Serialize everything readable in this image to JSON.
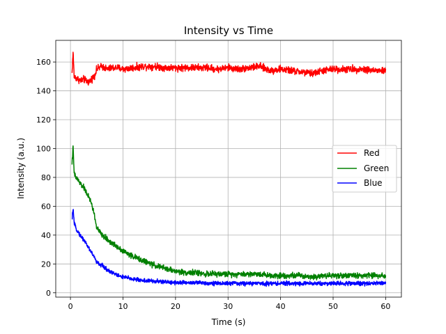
{
  "chart_data": {
    "type": "line",
    "title": "Intensity vs Time",
    "xlabel": "Time (s)",
    "ylabel": "Intensity (a.u.)",
    "xlim": [
      -2.8,
      63
    ],
    "ylim": [
      -3,
      175
    ],
    "xticks": [
      0,
      10,
      20,
      30,
      40,
      50,
      60
    ],
    "yticks": [
      0,
      20,
      40,
      60,
      80,
      100,
      120,
      140,
      160
    ],
    "grid": true,
    "legend_position": "center-right",
    "series": [
      {
        "name": "Red",
        "color": "#ff0000",
        "noise": 1.5,
        "x": [
          0.3,
          0.5,
          0.7,
          1,
          1.5,
          2,
          2.5,
          3,
          3.5,
          4,
          4.5,
          5,
          6,
          7,
          8,
          9,
          10,
          12,
          14,
          16,
          18,
          20,
          22,
          24,
          26,
          28,
          30,
          32,
          34,
          36,
          38,
          40,
          42,
          44,
          46,
          48,
          50,
          52,
          54,
          56,
          58,
          60
        ],
        "y": [
          152,
          167,
          150,
          149,
          148,
          147,
          148,
          147,
          146,
          148,
          150,
          155,
          157,
          155,
          156,
          156,
          155,
          156,
          157,
          157,
          156,
          156,
          156,
          156,
          156,
          155,
          156,
          155,
          156,
          157,
          154,
          155,
          154,
          153,
          152,
          154,
          155,
          155,
          155,
          155,
          154,
          154
        ]
      },
      {
        "name": "Green",
        "color": "#008000",
        "noise": 1.2,
        "x": [
          0.3,
          0.5,
          0.7,
          1,
          1.5,
          2,
          2.5,
          3,
          3.5,
          4,
          4.5,
          5,
          6,
          7,
          8,
          9,
          10,
          12,
          14,
          16,
          18,
          20,
          22,
          24,
          26,
          28,
          30,
          32,
          34,
          36,
          38,
          40,
          42,
          44,
          46,
          48,
          50,
          52,
          54,
          56,
          58,
          60
        ],
        "y": [
          90,
          101,
          83,
          80,
          78,
          75,
          73,
          70,
          66,
          62,
          55,
          45,
          40,
          37,
          34,
          32,
          29,
          25,
          22,
          19,
          17,
          15,
          14,
          14,
          13,
          13,
          13,
          13,
          13,
          13,
          12,
          12,
          12,
          12,
          11,
          12,
          12,
          12,
          12,
          12,
          12,
          12
        ]
      },
      {
        "name": "Blue",
        "color": "#0000ff",
        "noise": 0.9,
        "x": [
          0.3,
          0.5,
          0.7,
          1,
          1.5,
          2,
          2.5,
          3,
          3.5,
          4,
          4.5,
          5,
          6,
          7,
          8,
          9,
          10,
          12,
          14,
          16,
          18,
          20,
          22,
          24,
          26,
          28,
          30,
          32,
          34,
          36,
          38,
          40,
          42,
          44,
          46,
          48,
          50,
          52,
          54,
          56,
          58,
          60
        ],
        "y": [
          50,
          59,
          48,
          45,
          42,
          39,
          37,
          34,
          31,
          28,
          25,
          21,
          19,
          16,
          14,
          12,
          11,
          9.5,
          8.5,
          8,
          7.5,
          7.2,
          7,
          7,
          6.8,
          6.5,
          6.5,
          6.5,
          6.5,
          6.5,
          6.5,
          6.5,
          6.5,
          6.5,
          6.5,
          6.5,
          6.5,
          6.5,
          6.5,
          6.5,
          6.8,
          6.8
        ]
      }
    ]
  }
}
